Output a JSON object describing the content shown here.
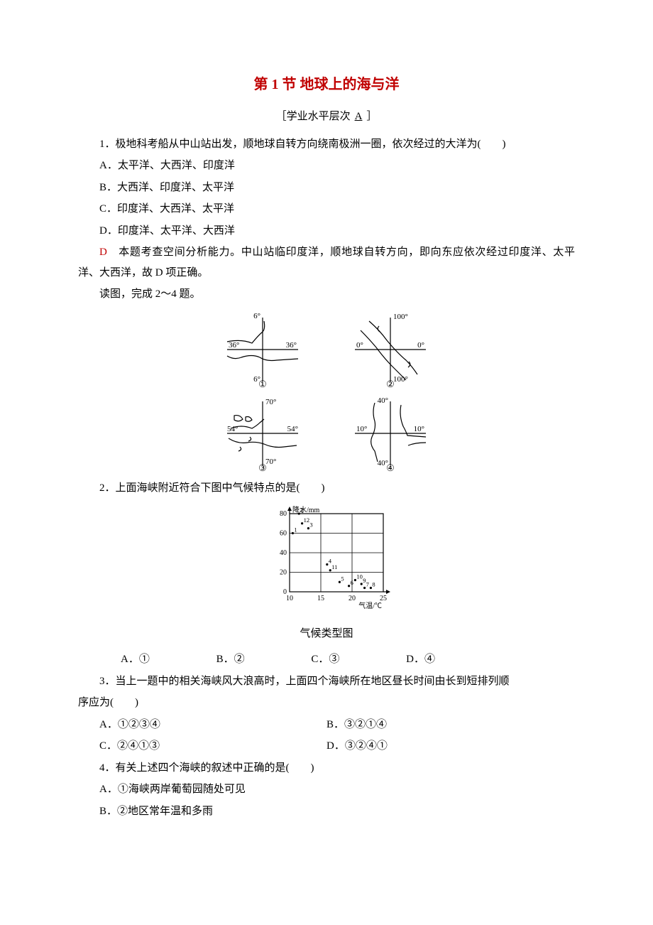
{
  "title": "第 1 节  地球上的海与洋",
  "subtitle_prefix": "［学业水平层次",
  "subtitle_level": "A",
  "subtitle_suffix": "］",
  "q1": {
    "stem": "1．极地科考船从中山站出发，顺地球自转方向绕南极洲一圈，依次经过的大洋为(　　)",
    "optA": "A．太平洋、大西洋、印度洋",
    "optB": "B．大西洋、印度洋、太平洋",
    "optC": "C．印度洋、大西洋、太平洋",
    "optD": "D．印度洋、太平洋、大西洋",
    "answer_letter": "D",
    "explanation": "　本题考查空间分析能力。中山站临印度洋，顺地球自转方向，即向东应依次经过印度洋、太平洋、大西洋，故 D 项正确。"
  },
  "read_instruction": "读图，完成 2～4 题。",
  "straits": {
    "maps": [
      {
        "label": "①",
        "lat_label": "36°",
        "lon_label": "6°"
      },
      {
        "label": "②",
        "lat_label": "0°",
        "lon_label": "100°"
      },
      {
        "label": "③",
        "lat_label": "54°",
        "lon_label": "70°"
      },
      {
        "label": "④",
        "lat_label": "10°",
        "lon_label": "40°"
      }
    ]
  },
  "climate_chart": {
    "y_title": "降水/mm",
    "x_title": "气温/℃",
    "y_ticks": [
      0,
      20,
      40,
      60,
      80
    ],
    "x_ticks": [
      10,
      15,
      20,
      25
    ],
    "points": [
      {
        "label": "1",
        "x": 10.5,
        "y": 60
      },
      {
        "label": "2",
        "x": 11.5,
        "y": 80
      },
      {
        "label": "12",
        "x": 12,
        "y": 70
      },
      {
        "label": "3",
        "x": 13,
        "y": 65
      },
      {
        "label": "4",
        "x": 16,
        "y": 28
      },
      {
        "label": "11",
        "x": 16.5,
        "y": 22
      },
      {
        "label": "5",
        "x": 18,
        "y": 10
      },
      {
        "label": "6",
        "x": 19.5,
        "y": 6
      },
      {
        "label": "10",
        "x": 20.5,
        "y": 12
      },
      {
        "label": "9",
        "x": 21.5,
        "y": 8
      },
      {
        "label": "7",
        "x": 22,
        "y": 4
      },
      {
        "label": "8",
        "x": 23,
        "y": 4
      }
    ],
    "caption": "气候类型图",
    "axis_color": "#000",
    "point_color": "#000",
    "font_size": 10
  },
  "q2": {
    "stem": "2．上面海峡附近符合下图中气候特点的是(　　)",
    "optA": "A．①",
    "optB": "B．②",
    "optC": "C．③",
    "optD": "D．④"
  },
  "q3": {
    "stem_part1": "3．当上一题中的相关海峡风大浪高时，上面四个海峡所在地区昼长时间由长到短排列顺",
    "stem_part2": "序应为(　　)",
    "optA": "A．①②③④",
    "optB": "B．③②①④",
    "optC": "C．②④①③",
    "optD": "D．③②④①"
  },
  "q4": {
    "stem": "4．有关上述四个海峡的叙述中正确的是(　　)",
    "optA": "A．①海峡两岸葡萄园随处可见",
    "optB": "B．②地区常年温和多雨"
  }
}
